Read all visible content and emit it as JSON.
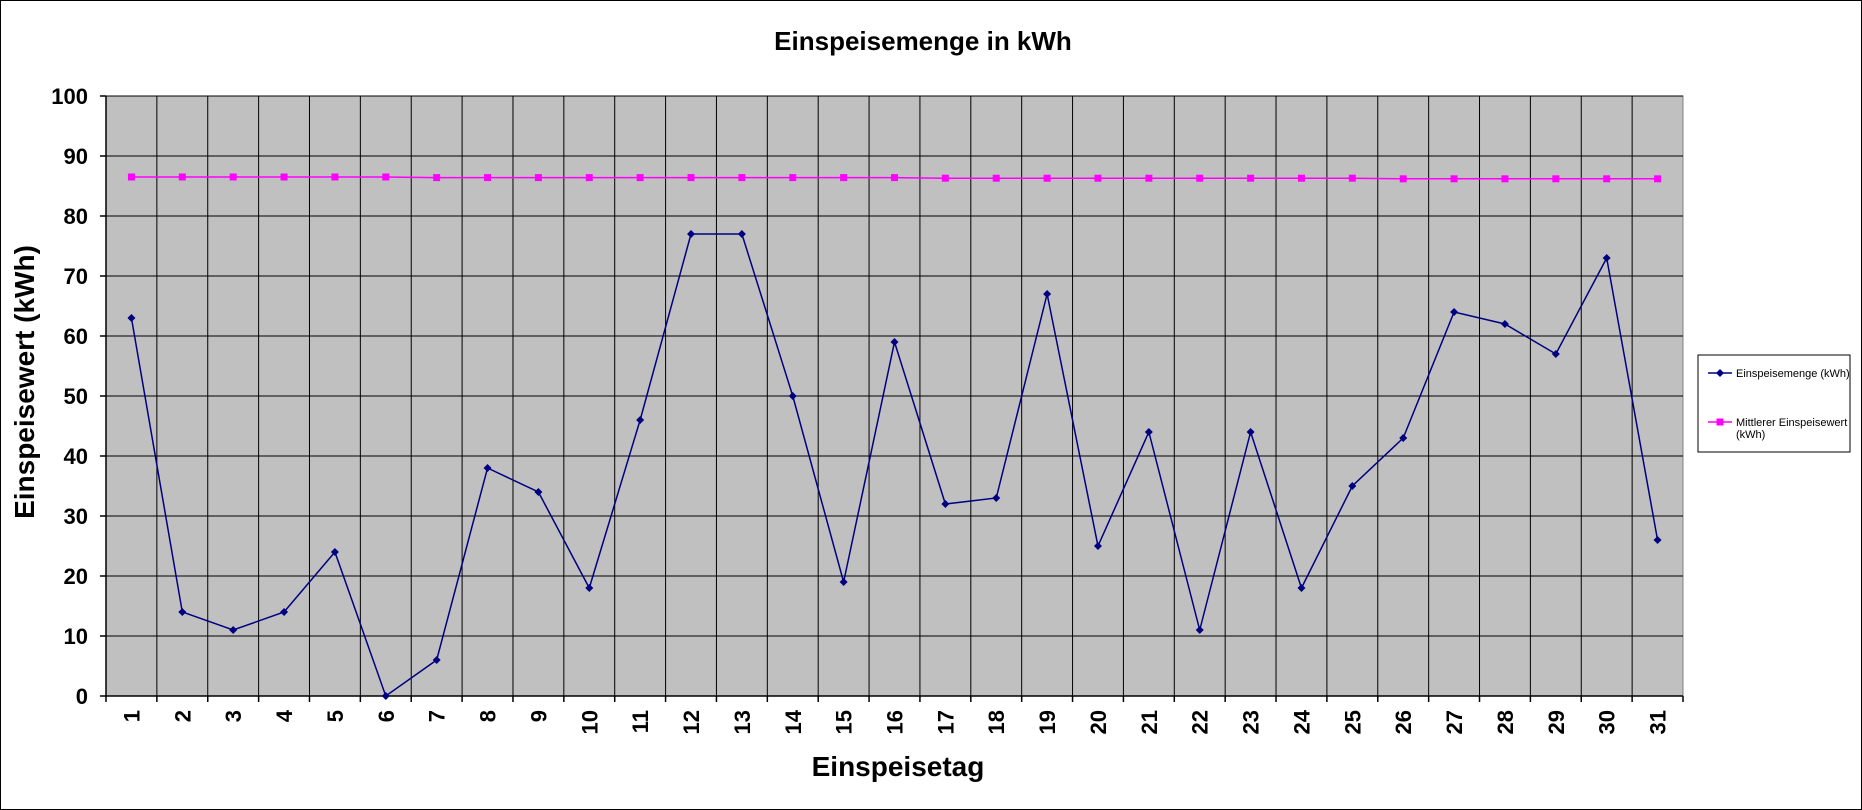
{
  "chart_data": {
    "type": "line",
    "title": "Einspeisemenge in kWh",
    "xlabel": "Einspeisetag",
    "ylabel": "Einspeisewert  (kWh)",
    "ylim": [
      0,
      100
    ],
    "yticks": [
      0,
      10,
      20,
      30,
      40,
      50,
      60,
      70,
      80,
      90,
      100
    ],
    "grid": true,
    "legend_position": "right",
    "plot_background": "#C0C0C0",
    "categories": [
      "1",
      "2",
      "3",
      "4",
      "5",
      "6",
      "7",
      "8",
      "9",
      "10",
      "11",
      "12",
      "13",
      "14",
      "15",
      "16",
      "17",
      "18",
      "19",
      "20",
      "21",
      "22",
      "23",
      "24",
      "25",
      "26",
      "27",
      "28",
      "29",
      "30",
      "31"
    ],
    "series": [
      {
        "name": "Einspeisemenge (kWh)",
        "color": "#000080",
        "marker": "diamond",
        "values": [
          63,
          14,
          11,
          14,
          24,
          0,
          6,
          38,
          34,
          18,
          46,
          77,
          77,
          50,
          19,
          59,
          32,
          33,
          67,
          25,
          44,
          11,
          44,
          18,
          35,
          43,
          64,
          62,
          57,
          73,
          26
        ]
      },
      {
        "name": "Mittlerer Einspeisewert (kWh)",
        "legend_lines": [
          "Mittlerer Einspeisewert",
          "(kWh)"
        ],
        "color": "#FF00FF",
        "marker": "square",
        "values": [
          86.5,
          86.5,
          86.5,
          86.5,
          86.5,
          86.5,
          86.4,
          86.4,
          86.4,
          86.4,
          86.4,
          86.4,
          86.4,
          86.4,
          86.4,
          86.4,
          86.3,
          86.3,
          86.3,
          86.3,
          86.3,
          86.3,
          86.3,
          86.3,
          86.3,
          86.2,
          86.2,
          86.2,
          86.2,
          86.2,
          86.2
        ]
      }
    ]
  }
}
